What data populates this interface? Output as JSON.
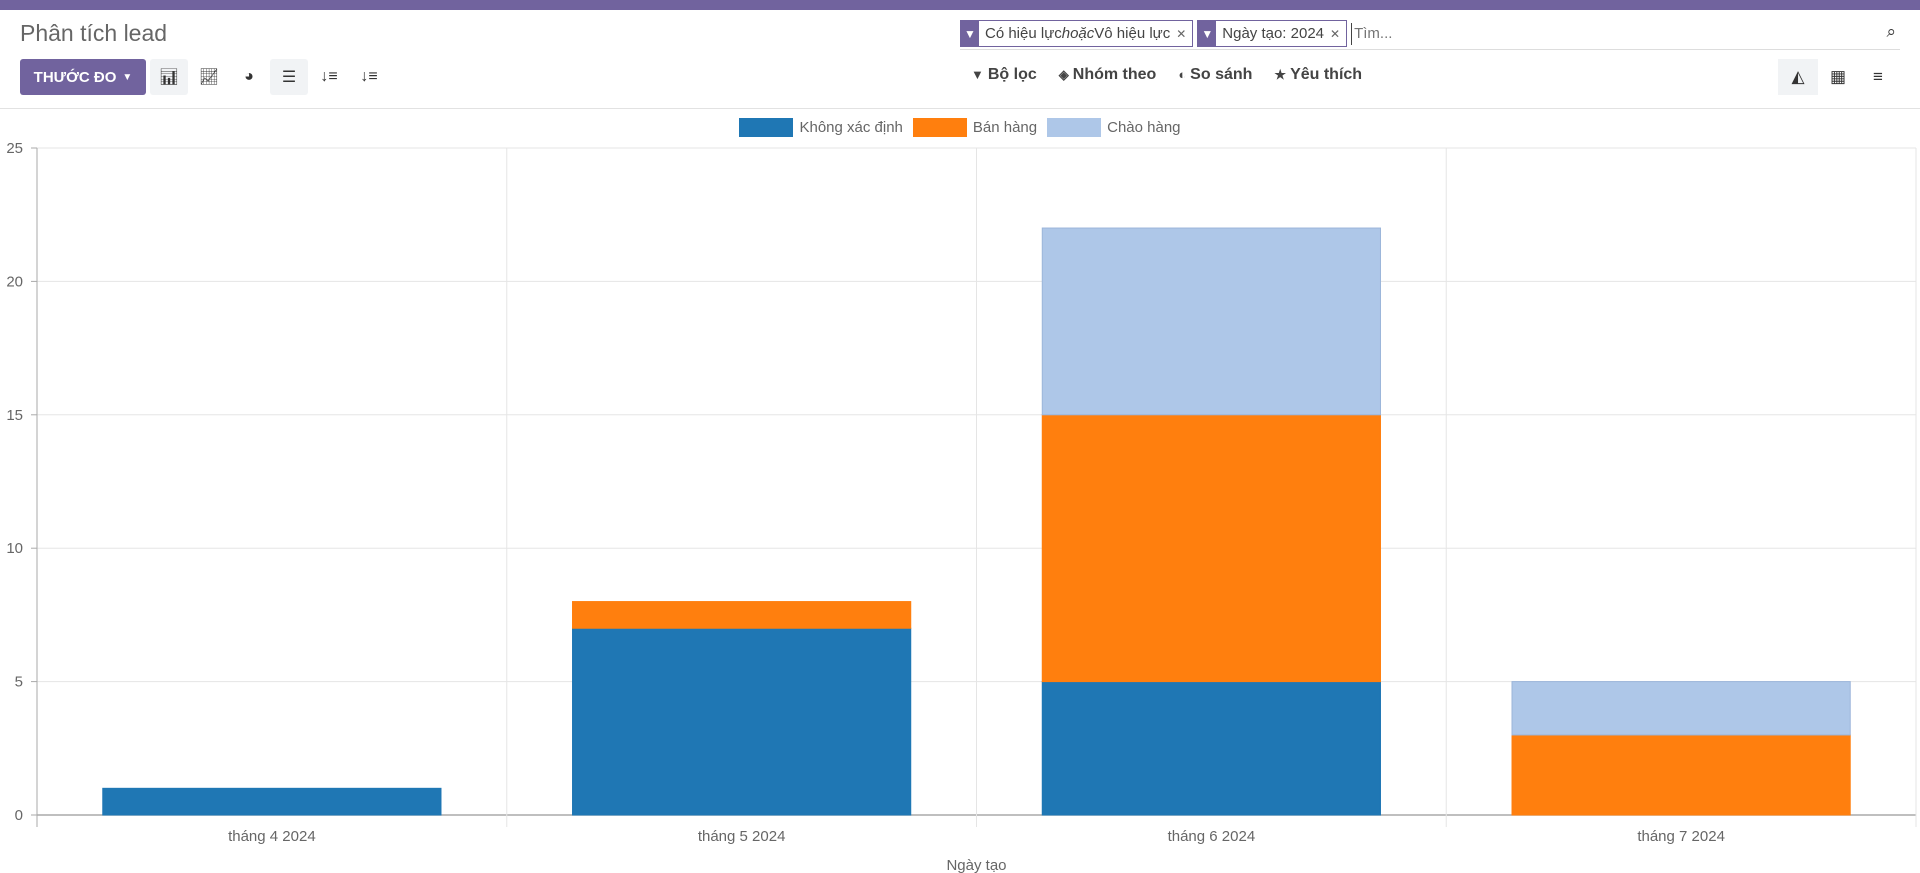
{
  "header": {
    "title": "Phân tích lead"
  },
  "toolbar": {
    "measure_label": "THƯỚC ĐO",
    "icons": [
      "bar-chart-icon",
      "line-chart-icon",
      "pie-chart-icon",
      "stacked-icon",
      "sort-desc-icon",
      "sort-asc-icon"
    ]
  },
  "search": {
    "facets": [
      {
        "value_parts": [
          "Có hiệu lực ",
          "hoặc",
          " Vô hiệu lực"
        ]
      },
      {
        "value": "Ngày tạo: 2024"
      }
    ],
    "placeholder": "Tìm..."
  },
  "options": {
    "filter": "Bộ lọc",
    "group_by": "Nhóm theo",
    "compare": "So sánh",
    "favorites": "Yêu thích"
  },
  "chart_data": {
    "type": "bar",
    "stacked": true,
    "categories": [
      "tháng 4 2024",
      "tháng 5 2024",
      "tháng 6 2024",
      "tháng 7 2024"
    ],
    "series": [
      {
        "name": "Không xác định",
        "color": "#1f77b4",
        "values": [
          1,
          7,
          5,
          0
        ]
      },
      {
        "name": "Bán hàng",
        "color": "#ff7f0e",
        "values": [
          0,
          1,
          10,
          3
        ]
      },
      {
        "name": "Chào hàng",
        "color": "#aec7e8",
        "values": [
          0,
          0,
          7,
          2
        ]
      }
    ],
    "xlabel": "Ngày tạo",
    "ylabel": "",
    "ylim": [
      0,
      25
    ],
    "yticks": [
      "0",
      "5",
      "10",
      "15",
      "20",
      "25"
    ],
    "grid": true,
    "legend": "top-center"
  }
}
